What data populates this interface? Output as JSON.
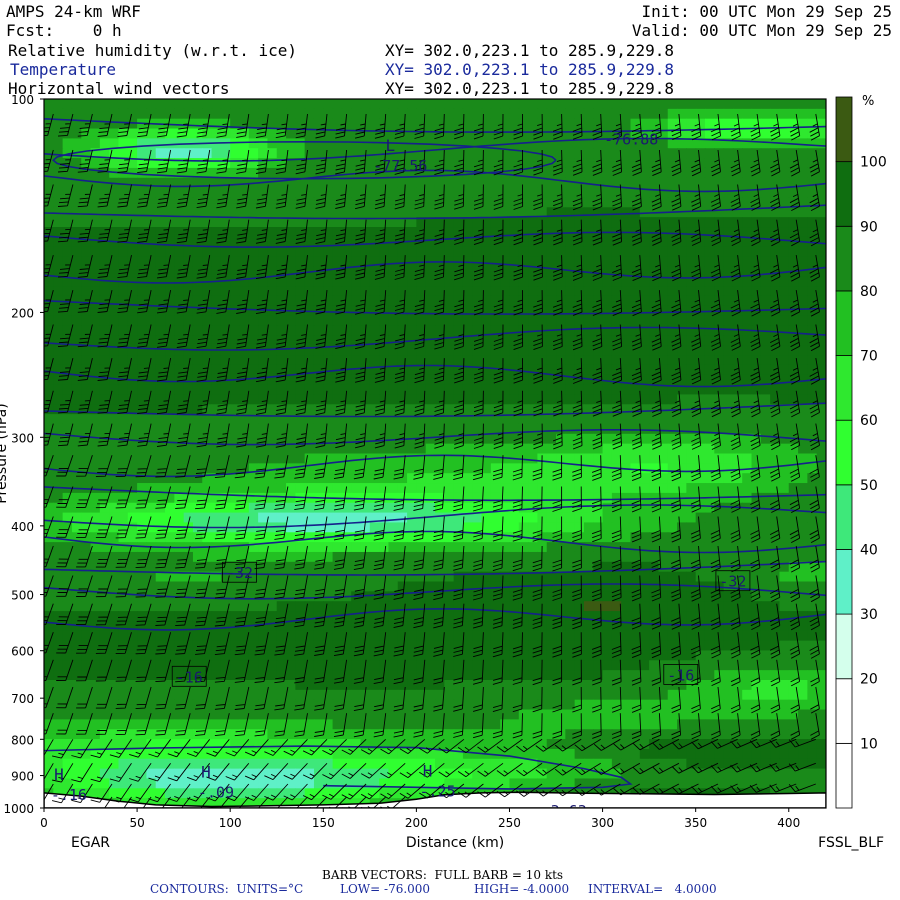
{
  "header": {
    "model": "AMPS 24-km WRF",
    "fcst": "Fcst:    0 h",
    "init": "Init: 00 UTC Mon 29 Sep 25",
    "valid": "Valid: 00 UTC Mon 29 Sep 25",
    "fields": [
      {
        "name": "Relative humidity (w.r.t. ice)",
        "xy": "XY= 302.0,223.1 to 285.9,229.8"
      },
      {
        "name": "Temperature",
        "xy": "XY= 302.0,223.1 to 285.9,229.8"
      },
      {
        "name": "Horizontal wind vectors",
        "xy": "XY= 302.0,223.1 to 285.9,229.8"
      }
    ]
  },
  "chart_data": {
    "type": "heatmap",
    "x": {
      "label": "Distance (km)",
      "range": [
        0,
        420
      ],
      "ticks": [
        0,
        50,
        100,
        150,
        200,
        250,
        300,
        350,
        400
      ]
    },
    "y": {
      "label": "Pressure (hPa)",
      "range": [
        100,
        1000
      ],
      "scale": "log",
      "ticks": [
        100,
        200,
        300,
        400,
        500,
        600,
        700,
        800,
        900,
        1000
      ]
    },
    "endpoints": {
      "left": "EGAR",
      "right": "FSSL_BLF"
    },
    "colorbar": {
      "unit": "%",
      "levels": [
        10,
        20,
        30,
        40,
        50,
        60,
        70,
        80,
        90,
        100
      ],
      "colors": [
        "#ffffff",
        "#ffffff",
        "#d4ffec",
        "#5ff0c8",
        "#3ee87a",
        "#30ff30",
        "#2fe82f",
        "#22c022",
        "#1a8a1a",
        "#0f6e10",
        "#3b5a12"
      ]
    },
    "temperature_contours": {
      "units": "°C",
      "low": -76.0,
      "high": -4.0,
      "interval": 4.0
    },
    "labels": {
      "temp": [
        {
          "x": 105,
          "p": 465,
          "text": "-32"
        },
        {
          "x": 370,
          "p": 478,
          "text": "-32"
        },
        {
          "x": 78,
          "p": 652,
          "text": "-16"
        },
        {
          "x": 342,
          "p": 648,
          "text": "-16"
        }
      ],
      "extrema": [
        {
          "x": 186,
          "p": 120,
          "letter": "L",
          "value": "-77.56"
        },
        {
          "x": 310,
          "p": 110,
          "letter": "",
          "value": "-76.88"
        },
        {
          "x": 8,
          "p": 925,
          "letter": "H",
          "value": "-.16"
        },
        {
          "x": 87,
          "p": 918,
          "letter": "H",
          "value": "-.09"
        },
        {
          "x": 206,
          "p": 915,
          "letter": "H",
          "value": "-.25"
        },
        {
          "x": 274,
          "p": 975,
          "letter": "",
          "value": "-3.63"
        }
      ]
    },
    "barb_legend": "BARB VECTORS:  FULL BARB = 10 kts",
    "contour_legend": {
      "prefix": "CONTOURS:  UNITS=°C",
      "low": "LOW= -76.000",
      "high": "HIGH= -4.0000",
      "interval": "INTERVAL=   4.0000"
    }
  }
}
